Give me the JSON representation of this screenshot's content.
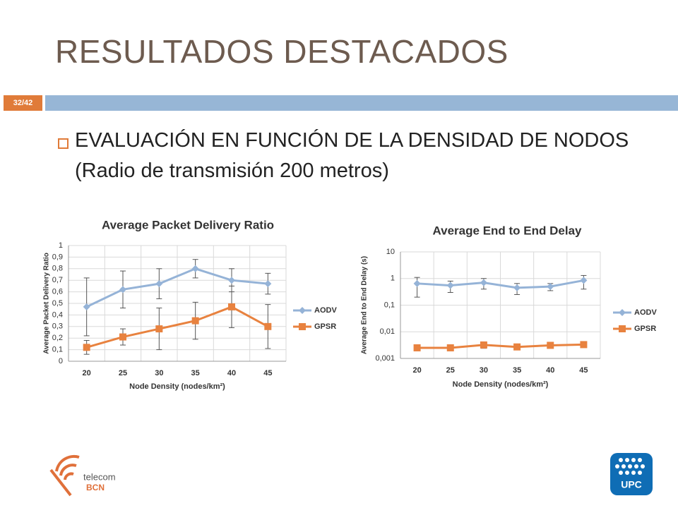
{
  "title": "RESULTADOS DESTACADOS",
  "page_number": "32/42",
  "bullet": "EVALUACIÓN EN FUNCIÓN DE LA DENSIDAD DE NODOS (Radio de transmisión 200 metros)",
  "logos": {
    "left_top": "telecom",
    "left_bottom": "BCN",
    "right": "UPC"
  },
  "chart_data": [
    {
      "type": "line",
      "title": "Average Packet Delivery Ratio",
      "x_label": "Node Density (nodes/km²)",
      "y_label": "Average Packet Delivery Ratio",
      "categories": [
        "20",
        "25",
        "30",
        "35",
        "40",
        "45"
      ],
      "series": [
        {
          "name": "AODV",
          "color": "#95b3d7",
          "marker": "diamond",
          "values": [
            0.47,
            0.62,
            0.67,
            0.8,
            0.7,
            0.67
          ],
          "errors": [
            0.25,
            0.16,
            0.13,
            0.08,
            0.1,
            0.09
          ]
        },
        {
          "name": "GPSR",
          "color": "#e8823f",
          "marker": "square",
          "values": [
            0.12,
            0.21,
            0.28,
            0.35,
            0.47,
            0.3
          ],
          "errors": [
            0.06,
            0.07,
            0.18,
            0.16,
            0.18,
            0.19
          ]
        }
      ],
      "ylim": [
        0,
        1
      ],
      "yticks": [
        0,
        {
          "value": 0.1,
          "label": "0,1"
        },
        {
          "value": 0.2,
          "label": "0,2"
        },
        {
          "value": 0.3,
          "label": "0,3"
        },
        {
          "value": 0.4,
          "label": "0,4"
        },
        {
          "value": 0.5,
          "label": "0,5"
        },
        {
          "value": 0.6,
          "label": "0,6"
        },
        {
          "value": 0.7,
          "label": "0,7"
        },
        {
          "value": 0.8,
          "label": "0,8"
        },
        {
          "value": 0.9,
          "label": "0,9"
        },
        1
      ],
      "log": false,
      "grid": true,
      "legend": "right"
    },
    {
      "type": "line",
      "title": "Average End to End Delay",
      "x_label": "Node Density (nodes/km²)",
      "y_label": "Average End to End Delay (s)",
      "categories": [
        "20",
        "25",
        "30",
        "35",
        "40",
        "45"
      ],
      "series": [
        {
          "name": "AODV",
          "color": "#95b3d7",
          "marker": "diamond",
          "values": [
            0.65,
            0.55,
            0.7,
            0.45,
            0.5,
            0.85
          ],
          "errors": [
            0.45,
            0.25,
            0.3,
            0.2,
            0.15,
            0.45
          ]
        },
        {
          "name": "GPSR",
          "color": "#e8823f",
          "marker": "square",
          "values": [
            0.0025,
            0.0025,
            0.0032,
            0.0027,
            0.0031,
            0.0033
          ],
          "errors": [
            0.0003,
            0.0002,
            0.0008,
            0.0003,
            0.0004,
            0.0006
          ]
        }
      ],
      "ylim": [
        0.001,
        10
      ],
      "yticks": [
        {
          "value": 0.001,
          "label": "0,001"
        },
        {
          "value": 0.01,
          "label": "0,01"
        },
        {
          "value": 0.1,
          "label": "0,1"
        },
        1,
        10
      ],
      "log": true,
      "grid": true,
      "legend": "right"
    }
  ]
}
